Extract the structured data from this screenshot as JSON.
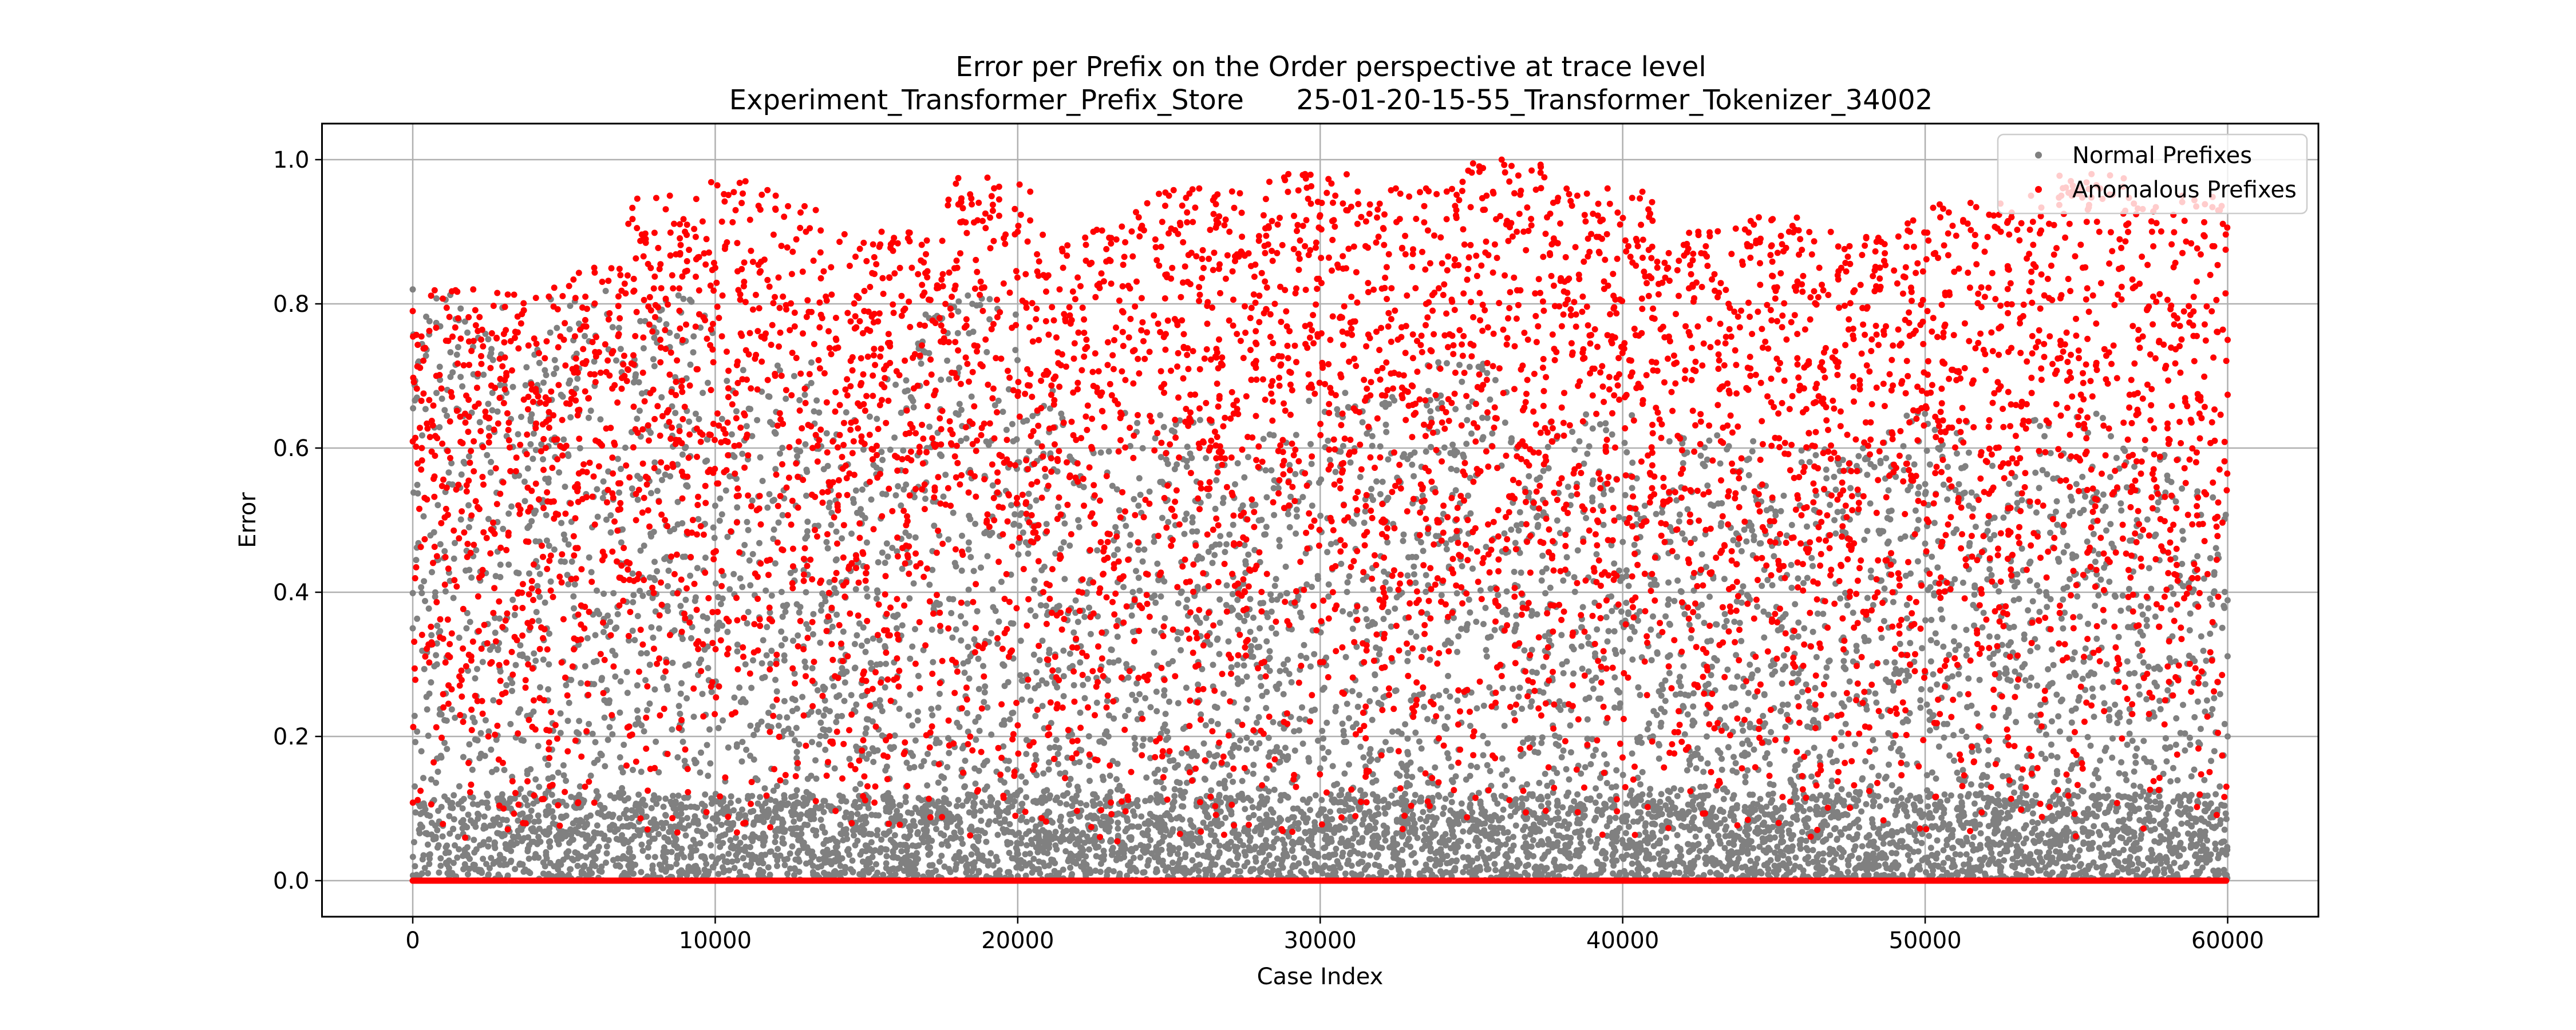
{
  "chart_data": {
    "type": "scatter",
    "title_line1": "Error per Prefix on the Order perspective at trace level",
    "title_line2": "Experiment_Transformer_Prefix_Store      25-01-20-15-55_Transformer_Tokenizer_34002",
    "xlabel": "Case Index",
    "ylabel": "Error",
    "xlim": [
      -3000,
      63000
    ],
    "ylim": [
      -0.05,
      1.05
    ],
    "x_ticks": [
      0,
      10000,
      20000,
      30000,
      40000,
      50000,
      60000
    ],
    "x_tick_labels": [
      "0",
      "10000",
      "20000",
      "30000",
      "40000",
      "50000",
      "60000"
    ],
    "y_ticks": [
      0.0,
      0.2,
      0.4,
      0.6,
      0.8,
      1.0
    ],
    "y_tick_labels": [
      "0.0",
      "0.2",
      "0.4",
      "0.6",
      "0.8",
      "1.0"
    ],
    "grid": true,
    "legend_position": "top-right",
    "x_range": [
      0,
      60000
    ],
    "series": [
      {
        "name": "Normal Prefixes",
        "color": "#808080",
        "approx_point_count": 60000,
        "points": [
          [
            0,
            0.82
          ],
          [
            0,
            0.35
          ],
          [
            200,
            0.72
          ],
          [
            500,
            0.05
          ],
          [
            800,
            0.3
          ],
          [
            1200,
            0.55
          ],
          [
            1500,
            0.74
          ],
          [
            2000,
            0.45
          ],
          [
            2500,
            0.2
          ],
          [
            3000,
            0.35
          ],
          [
            3500,
            0.12
          ],
          [
            4000,
            0.62
          ],
          [
            4500,
            0.3
          ],
          [
            5000,
            0.48
          ],
          [
            5500,
            0.65
          ],
          [
            6000,
            0.72
          ],
          [
            6500,
            0.25
          ],
          [
            7000,
            0.44
          ],
          [
            7500,
            0.1
          ],
          [
            8000,
            0.58
          ],
          [
            8500,
            0.74
          ],
          [
            9000,
            0.6
          ],
          [
            9500,
            0.15
          ],
          [
            10000,
            0.52
          ],
          [
            11000,
            0.3
          ],
          [
            12000,
            0.62
          ],
          [
            13000,
            0.4
          ],
          [
            14000,
            0.22
          ],
          [
            15000,
            0.55
          ],
          [
            16000,
            0.35
          ],
          [
            17000,
            0.6
          ],
          [
            18000,
            0.7
          ],
          [
            18500,
            0.8
          ],
          [
            19000,
            0.45
          ],
          [
            20000,
            0.58
          ],
          [
            21000,
            0.3
          ],
          [
            22000,
            0.5
          ],
          [
            23000,
            0.2
          ],
          [
            24000,
            0.42
          ],
          [
            25000,
            0.55
          ],
          [
            26000,
            0.25
          ],
          [
            27000,
            0.48
          ],
          [
            28000,
            0.35
          ],
          [
            29000,
            0.52
          ],
          [
            30000,
            0.3
          ],
          [
            31000,
            0.58
          ],
          [
            32000,
            0.45
          ],
          [
            33000,
            0.25
          ],
          [
            34000,
            0.5
          ],
          [
            35000,
            0.62
          ],
          [
            36000,
            0.35
          ],
          [
            37000,
            0.48
          ],
          [
            38000,
            0.3
          ],
          [
            39000,
            0.55
          ],
          [
            40000,
            0.42
          ],
          [
            41000,
            0.2
          ],
          [
            42000,
            0.38
          ],
          [
            43000,
            0.52
          ],
          [
            44000,
            0.28
          ],
          [
            45000,
            0.45
          ],
          [
            46000,
            0.35
          ],
          [
            47000,
            0.5
          ],
          [
            48000,
            0.25
          ],
          [
            49000,
            0.4
          ],
          [
            50000,
            0.55
          ],
          [
            51000,
            0.32
          ],
          [
            52000,
            0.48
          ],
          [
            53000,
            0.22
          ],
          [
            54000,
            0.4
          ],
          [
            55000,
            0.55
          ],
          [
            56000,
            0.3
          ],
          [
            57000,
            0.5
          ],
          [
            58000,
            0.25
          ],
          [
            59000,
            0.45
          ],
          [
            60000,
            0.2
          ]
        ]
      },
      {
        "name": "Anomalous Prefixes",
        "color": "#ff0000",
        "approx_point_count": 20000,
        "points": [
          [
            0,
            0.79
          ],
          [
            300,
            0.6
          ],
          [
            800,
            0.45
          ],
          [
            1500,
            0.78
          ],
          [
            2000,
            0.82
          ],
          [
            2500,
            0.2
          ],
          [
            3000,
            0.1
          ],
          [
            3500,
            0.4
          ],
          [
            4000,
            0.25
          ],
          [
            4500,
            0.81
          ],
          [
            5000,
            0.6
          ],
          [
            6000,
            0.85
          ],
          [
            7000,
            0.7
          ],
          [
            8500,
            0.95
          ],
          [
            9000,
            0.9
          ],
          [
            10000,
            0.85
          ],
          [
            11000,
            0.97
          ],
          [
            12000,
            0.95
          ],
          [
            13000,
            0.9
          ],
          [
            14000,
            0.75
          ],
          [
            15500,
            0.9
          ],
          [
            16500,
            0.85
          ],
          [
            18000,
            0.85
          ],
          [
            19000,
            0.975
          ],
          [
            20000,
            0.9
          ],
          [
            21500,
            0.85
          ],
          [
            22500,
            0.9
          ],
          [
            24000,
            0.92
          ],
          [
            25000,
            0.95
          ],
          [
            26000,
            0.96
          ],
          [
            27000,
            0.9
          ],
          [
            28500,
            0.8
          ],
          [
            29500,
            0.98
          ],
          [
            30500,
            0.95
          ],
          [
            31500,
            0.88
          ],
          [
            32500,
            0.96
          ],
          [
            33500,
            0.96
          ],
          [
            34500,
            0.93
          ],
          [
            35500,
            0.95
          ],
          [
            36000,
            1.0
          ],
          [
            36500,
            0.9
          ],
          [
            37500,
            0.92
          ],
          [
            38500,
            0.95
          ],
          [
            39500,
            0.96
          ],
          [
            40500,
            0.88
          ],
          [
            41500,
            0.85
          ],
          [
            42500,
            0.9
          ],
          [
            43500,
            0.8
          ],
          [
            44500,
            0.92
          ],
          [
            45500,
            0.9
          ],
          [
            46500,
            0.85
          ],
          [
            47500,
            0.88
          ],
          [
            48500,
            0.82
          ],
          [
            49500,
            0.9
          ],
          [
            50500,
            0.92
          ],
          [
            51500,
            0.94
          ],
          [
            52500,
            0.9
          ],
          [
            53500,
            0.95
          ],
          [
            54500,
            0.95
          ],
          [
            55500,
            0.98
          ],
          [
            56500,
            0.85
          ],
          [
            57500,
            0.9
          ],
          [
            58500,
            0.95
          ],
          [
            59500,
            0.88
          ],
          [
            60000,
            0.75
          ]
        ]
      }
    ]
  }
}
